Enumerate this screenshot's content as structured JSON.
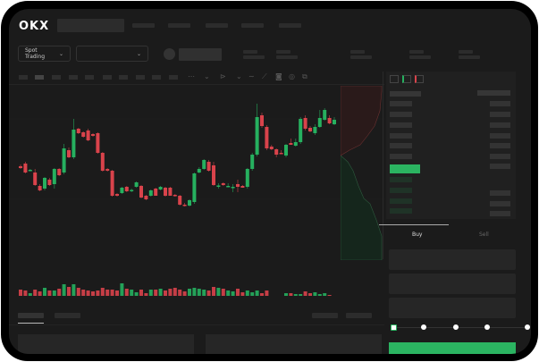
{
  "header": {
    "logo": "OKX",
    "nav_count": 5
  },
  "toolbar": {
    "market_type": "Spot Trading",
    "pair_select": "",
    "chevron": "⌄"
  },
  "chart_icons": [
    "indicator-icon",
    "chevron-down-icon",
    "draw-icon",
    "chevron-down-icon",
    "line-icon",
    "ruler-icon",
    "camera-icon",
    "settings-icon",
    "fullscreen-icon"
  ],
  "colors": {
    "up": "#26b05f",
    "down": "#d9434b",
    "buy": "#2bb461",
    "background": "#1b1b1b"
  },
  "trade": {
    "buy_tab": "Buy",
    "sell_tab": "Sell",
    "slider_steps": 5,
    "slider_value": 0
  },
  "chart_data": {
    "type": "candlestick",
    "grid": true,
    "ohlc": [
      [
        55,
        57,
        52,
        53
      ],
      [
        58,
        60,
        47,
        48
      ],
      [
        50,
        52,
        50,
        51
      ],
      [
        48,
        52,
        33,
        34
      ],
      [
        33,
        35,
        27,
        28
      ],
      [
        30,
        43,
        28,
        42
      ],
      [
        40,
        42,
        33,
        34
      ],
      [
        35,
        53,
        30,
        52
      ],
      [
        52,
        53,
        44,
        45
      ],
      [
        48,
        80,
        46,
        75
      ],
      [
        73,
        76,
        64,
        65
      ],
      [
        65,
        108,
        63,
        96
      ],
      [
        97,
        98,
        91,
        92
      ],
      [
        93,
        94,
        87,
        88
      ],
      [
        95,
        97,
        83,
        84
      ],
      [
        91,
        92,
        88,
        89
      ],
      [
        92,
        93,
        69,
        70
      ],
      [
        70,
        71,
        49,
        50
      ],
      [
        52,
        53,
        49,
        50
      ],
      [
        50,
        51,
        21,
        22
      ],
      [
        24,
        25,
        21,
        22
      ],
      [
        25,
        32,
        24,
        31
      ],
      [
        32,
        33,
        26,
        27
      ],
      [
        28,
        30,
        26,
        28.5
      ],
      [
        32,
        38,
        31,
        37
      ],
      [
        33,
        34,
        19,
        20
      ],
      [
        22,
        23,
        17,
        18
      ],
      [
        22,
        29,
        21,
        28
      ],
      [
        30,
        31,
        22,
        22
      ],
      [
        29,
        33,
        28,
        32
      ],
      [
        31,
        32,
        21,
        22
      ],
      [
        31,
        32,
        22,
        22
      ],
      [
        23,
        24,
        21,
        22
      ],
      [
        22,
        23,
        11,
        12
      ],
      [
        12,
        14,
        10,
        11
      ],
      [
        11,
        18,
        10,
        17
      ],
      [
        15,
        48,
        13,
        47
      ],
      [
        48,
        54,
        47,
        52
      ],
      [
        52,
        63,
        51,
        62
      ],
      [
        60,
        62,
        49,
        50
      ],
      [
        56,
        60,
        33,
        34
      ],
      [
        33,
        36,
        30,
        33.5
      ],
      [
        36,
        37,
        33,
        34
      ],
      [
        32,
        36,
        32,
        33
      ],
      [
        31,
        35,
        26,
        32
      ],
      [
        35,
        40,
        26,
        32
      ],
      [
        33,
        34,
        31,
        31
      ],
      [
        32,
        53,
        30,
        52
      ],
      [
        52,
        70,
        50,
        68
      ],
      [
        68,
        125,
        66,
        110
      ],
      [
        112,
        115,
        98,
        100
      ],
      [
        99,
        101,
        73,
        75
      ],
      [
        77,
        79,
        73,
        74
      ],
      [
        74,
        75,
        65,
        68
      ],
      [
        70,
        73,
        69,
        69
      ],
      [
        67,
        80,
        65,
        79
      ],
      [
        81,
        86,
        79,
        79
      ],
      [
        78,
        86,
        77,
        82
      ],
      [
        82,
        110,
        80,
        108
      ],
      [
        109,
        112,
        95,
        97
      ],
      [
        98,
        100,
        93,
        94
      ],
      [
        92,
        102,
        90,
        99
      ],
      [
        99,
        118,
        98,
        109
      ],
      [
        107,
        120,
        106,
        118
      ],
      [
        109,
        112,
        102,
        103
      ],
      [
        102,
        110,
        101,
        107
      ]
    ],
    "volume": [
      11,
      10,
      7,
      11,
      9,
      13,
      10,
      10,
      12,
      17,
      14,
      17,
      13,
      11,
      10,
      9,
      10,
      13,
      11,
      11,
      10,
      18,
      12,
      11,
      8,
      11,
      7,
      11,
      11,
      12,
      10,
      12,
      13,
      11,
      9,
      12,
      13,
      12,
      11,
      10,
      14,
      13,
      12,
      10,
      9,
      12,
      8,
      10,
      8,
      10,
      7,
      10,
      2,
      2,
      3,
      7,
      7,
      6,
      6,
      9,
      7,
      8,
      6,
      7,
      5,
      3
    ]
  }
}
